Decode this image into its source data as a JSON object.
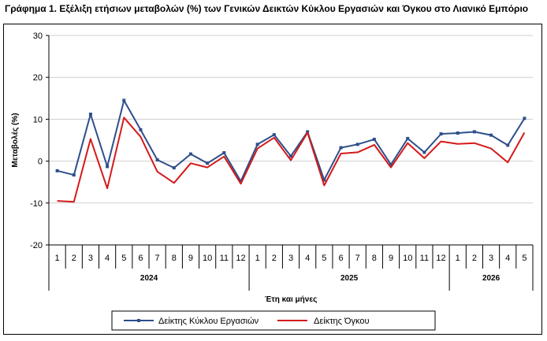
{
  "title": "Γράφημα 1. Εξέλιξη ετήσιων μεταβολών (%) των Γενικών Δεικτών Κύκλου Εργασιών και Όγκου στο Λιανικό Εμπόριο",
  "colors": {
    "turnover": "#2e4f8a",
    "volume": "#d41a1a",
    "grid": "#cfcfcf",
    "axis": "#000000"
  },
  "chart_data": {
    "type": "line",
    "title": "Γράφημα 1. Εξέλιξη ετήσιων μεταβολών (%) των Γενικών Δεικτών Κύκλου Εργασιών και Όγκου στο Λιανικό Εμπόριο",
    "xlabel": "Έτη και μήνες",
    "ylabel": "Μεταβολές (%)",
    "ylim": [
      -20,
      30
    ],
    "yticks": [
      "-20",
      "-10",
      "0",
      "10",
      "20",
      "30"
    ],
    "grid": true,
    "legend": "bottom",
    "categories": [
      "1",
      "2",
      "3",
      "4",
      "5",
      "6",
      "7",
      "8",
      "9",
      "10",
      "11",
      "12",
      "1",
      "2",
      "3",
      "4",
      "5",
      "6",
      "7",
      "8",
      "9",
      "10",
      "11",
      "12",
      "1",
      "2",
      "3",
      "4",
      "5"
    ],
    "groups": [
      {
        "label": "2024",
        "count": 12
      },
      {
        "label": "2025",
        "count": 12
      },
      {
        "label": "2026",
        "count": 5
      }
    ],
    "series": [
      {
        "name": "Δείκτης Κύκλου Εργασιών",
        "values": [
          -2.3,
          -3.3,
          11.2,
          -1.3,
          14.5,
          7.5,
          0.3,
          -1.6,
          1.7,
          -0.5,
          2.0,
          -4.8,
          4.0,
          6.3,
          1.2,
          7.0,
          -4.5,
          3.2,
          4.0,
          5.2,
          -0.8,
          5.4,
          2.1,
          6.5,
          6.7,
          7.0,
          6.2,
          3.8,
          10.2
        ]
      },
      {
        "name": "Δείκτης Όγκου",
        "values": [
          -9.5,
          -9.7,
          5.3,
          -6.5,
          10.4,
          5.8,
          -2.5,
          -5.2,
          -0.5,
          -1.5,
          1.1,
          -5.4,
          3.0,
          5.6,
          0.2,
          6.8,
          -5.8,
          1.8,
          2.1,
          3.9,
          -1.5,
          4.3,
          0.7,
          4.7,
          4.1,
          4.3,
          3.0,
          -0.3,
          6.8
        ]
      }
    ]
  }
}
